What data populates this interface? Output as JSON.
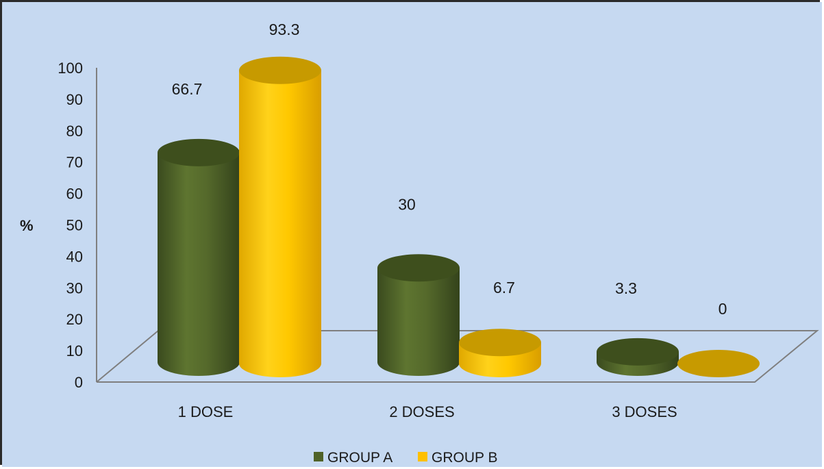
{
  "chart_data": {
    "type": "bar",
    "style": "3d-cylinder",
    "categories": [
      "1 DOSE",
      "2 DOSES",
      "3 DOSES"
    ],
    "series": [
      {
        "name": "GROUP A",
        "values": [
          66.7,
          30,
          3.3
        ],
        "color": "#4f6228"
      },
      {
        "name": "GROUP B",
        "values": [
          93.3,
          6.7,
          0
        ],
        "color": "#ffc000"
      }
    ],
    "data_labels": [
      [
        "66.7",
        "30",
        "3.3"
      ],
      [
        "93.3",
        "6.7",
        "0"
      ]
    ],
    "ylabel": "%",
    "ylim": [
      0,
      100
    ],
    "yticks": [
      "0",
      "10",
      "20",
      "30",
      "40",
      "50",
      "60",
      "70",
      "80",
      "90",
      "100"
    ],
    "legend_position": "bottom",
    "background": "#c6d9f1",
    "grid": false
  }
}
